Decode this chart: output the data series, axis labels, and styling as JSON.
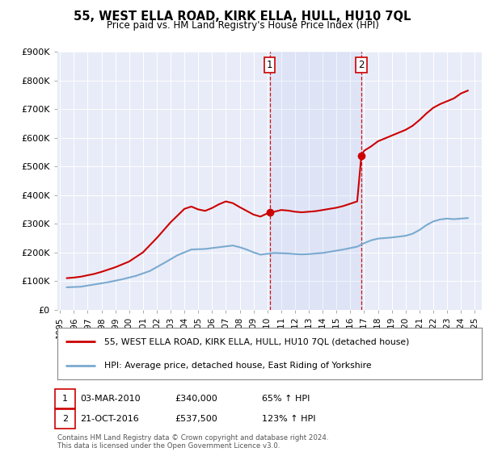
{
  "title": "55, WEST ELLA ROAD, KIRK ELLA, HULL, HU10 7QL",
  "subtitle": "Price paid vs. HM Land Registry's House Price Index (HPI)",
  "ylabel_ticks": [
    "£0",
    "£100K",
    "£200K",
    "£300K",
    "£400K",
    "£500K",
    "£600K",
    "£700K",
    "£800K",
    "£900K"
  ],
  "ylim": [
    0,
    900000
  ],
  "xlim_start": 1994.8,
  "xlim_end": 2025.5,
  "legend_line1": "55, WEST ELLA ROAD, KIRK ELLA, HULL, HU10 7QL (detached house)",
  "legend_line2": "HPI: Average price, detached house, East Riding of Yorkshire",
  "annotation1_label": "1",
  "annotation1_date": "03-MAR-2010",
  "annotation1_price": "£340,000",
  "annotation1_pct": "65% ↑ HPI",
  "annotation2_label": "2",
  "annotation2_date": "21-OCT-2016",
  "annotation2_price": "£537,500",
  "annotation2_pct": "123% ↑ HPI",
  "footer": "Contains HM Land Registry data © Crown copyright and database right 2024.\nThis data is licensed under the Open Government Licence v3.0.",
  "line1_color": "#cc0000",
  "line2_color": "#7aaad0",
  "vline1_x": 2010.17,
  "vline2_x": 2016.8,
  "marker1_x": 2010.17,
  "marker1_y": 340000,
  "marker2_x": 2016.8,
  "marker2_y": 537500,
  "background_plot": "#e8ecf8",
  "background_fig": "#ffffff",
  "hpi_years": [
    1995.5,
    1996.5,
    1997.5,
    1998.5,
    1999.5,
    2000.5,
    2001.5,
    2002.5,
    2003.5,
    2004.5,
    2005.5,
    2006.5,
    2007.5,
    2008.0,
    2008.5,
    2009.0,
    2009.5,
    2010.0,
    2010.5,
    2011.0,
    2011.5,
    2012.0,
    2012.5,
    2013.0,
    2013.5,
    2014.0,
    2014.5,
    2015.0,
    2015.5,
    2016.0,
    2016.5,
    2017.0,
    2017.5,
    2018.0,
    2018.5,
    2019.0,
    2019.5,
    2020.0,
    2020.5,
    2021.0,
    2021.5,
    2022.0,
    2022.5,
    2023.0,
    2023.5,
    2024.0,
    2024.5
  ],
  "hpi_values": [
    78000,
    80000,
    88000,
    96000,
    106000,
    118000,
    135000,
    162000,
    190000,
    210000,
    212000,
    218000,
    224000,
    218000,
    210000,
    200000,
    192000,
    195000,
    198000,
    197000,
    196000,
    194000,
    193000,
    194000,
    196000,
    198000,
    202000,
    206000,
    210000,
    215000,
    220000,
    232000,
    242000,
    248000,
    250000,
    252000,
    255000,
    258000,
    265000,
    278000,
    295000,
    308000,
    315000,
    318000,
    316000,
    318000,
    320000
  ],
  "prop_years": [
    1995.5,
    1996.0,
    1996.5,
    1997.0,
    1997.5,
    1998.0,
    1999.0,
    2000.0,
    2001.0,
    2002.0,
    2003.0,
    2004.0,
    2004.5,
    2005.0,
    2005.5,
    2006.0,
    2006.5,
    2007.0,
    2007.5,
    2008.0,
    2008.5,
    2009.0,
    2009.5,
    2010.17,
    2010.5,
    2011.0,
    2011.5,
    2012.0,
    2012.5,
    2013.0,
    2013.5,
    2014.0,
    2014.5,
    2015.0,
    2015.5,
    2016.0,
    2016.5,
    2016.8,
    2017.0,
    2017.5,
    2018.0,
    2018.5,
    2019.0,
    2019.5,
    2020.0,
    2020.5,
    2021.0,
    2021.5,
    2022.0,
    2022.5,
    2023.0,
    2023.5,
    2024.0,
    2024.5
  ],
  "prop_values": [
    110000,
    112000,
    115000,
    120000,
    125000,
    132000,
    148000,
    168000,
    200000,
    250000,
    305000,
    352000,
    360000,
    350000,
    345000,
    355000,
    368000,
    378000,
    372000,
    358000,
    345000,
    332000,
    325000,
    340000,
    342000,
    348000,
    346000,
    342000,
    340000,
    342000,
    344000,
    348000,
    352000,
    356000,
    362000,
    370000,
    378000,
    537500,
    555000,
    570000,
    588000,
    598000,
    608000,
    618000,
    628000,
    642000,
    662000,
    685000,
    705000,
    718000,
    728000,
    738000,
    755000,
    765000
  ]
}
